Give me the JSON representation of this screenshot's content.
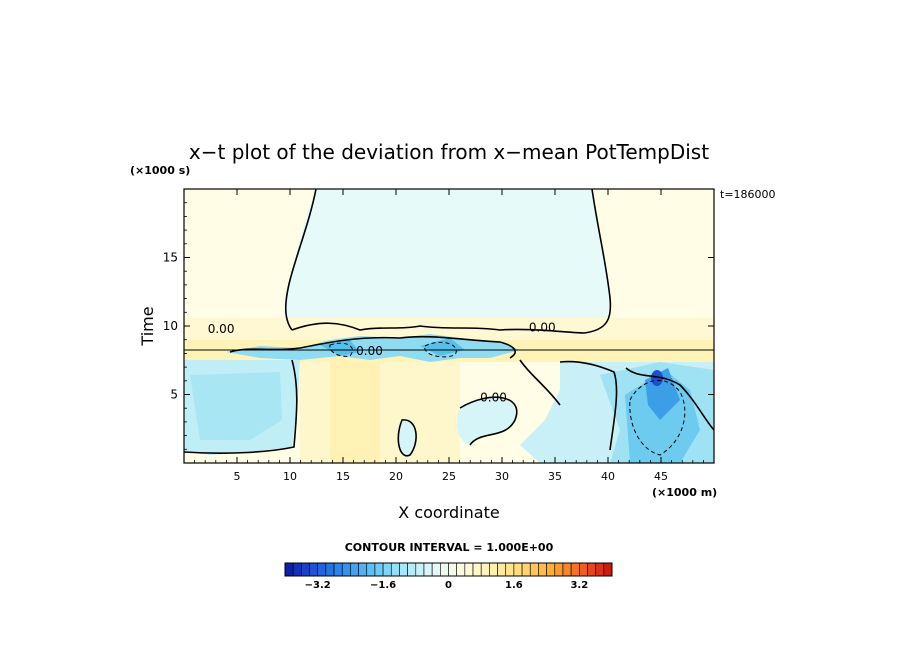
{
  "chart_data": {
    "type": "heatmap",
    "title": "x−t plot of the deviation from x−mean PotTempDist",
    "xlabel": "X coordinate",
    "ylabel": "Time",
    "x_unit": "(×1000 m)",
    "y_unit": "(×1000 s)",
    "time_stamp": "t=186000",
    "xlim": [
      0,
      50
    ],
    "ylim": [
      0,
      20
    ],
    "x_ticks": [
      5,
      10,
      15,
      20,
      25,
      30,
      35,
      40,
      45
    ],
    "y_ticks": [
      5,
      10,
      15
    ],
    "contour_interval_label": "CONTOUR INTERVAL = 1.000E+00",
    "contour_labels": [
      {
        "text": "0.00",
        "x": 3.5,
        "y": 9.5
      },
      {
        "text": "0.00",
        "x": 33.8,
        "y": 9.6
      },
      {
        "text": "0.00",
        "x": 17.5,
        "y": 7.9
      },
      {
        "text": "0.00",
        "x": 29.2,
        "y": 4.5
      }
    ],
    "colorbar": {
      "min": -4.0,
      "max": 4.0,
      "step": 0.2,
      "tick_values": [
        -3.2,
        -1.6,
        0,
        1.6,
        3.2
      ],
      "tick_labels": [
        "−3.2",
        "−1.6",
        "0",
        "1.6",
        "3.2"
      ],
      "stops": [
        "#0a1aa0",
        "#1f55d8",
        "#2f8ff0",
        "#63c6f5",
        "#a8e7f7",
        "#e3f8fa",
        "#fffbe0",
        "#fff0b0",
        "#ffd874",
        "#ffaa33",
        "#f06020",
        "#c81010"
      ]
    }
  }
}
